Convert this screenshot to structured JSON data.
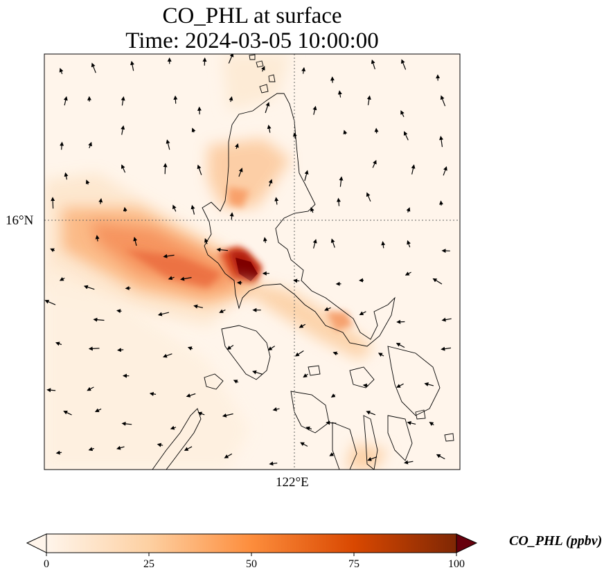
{
  "title": {
    "line1": "CO_PHL at surface",
    "line2": "Time: 2024-03-05 10:00:00"
  },
  "map": {
    "gridlines": {
      "latitude_label": "16°N",
      "longitude_label": "122°E"
    },
    "field": "CO_PHL",
    "wind_vectors": true,
    "coastlines": true
  },
  "colorbar": {
    "label": "CO_PHL (ppbv)",
    "ticks": [
      "0",
      "25",
      "50",
      "75",
      "100"
    ],
    "min": 0,
    "max": 100,
    "extend": "both",
    "colormap": [
      "#fff5eb",
      "#fdd0a2",
      "#fd8d3c",
      "#d94801",
      "#7f2704"
    ]
  }
}
